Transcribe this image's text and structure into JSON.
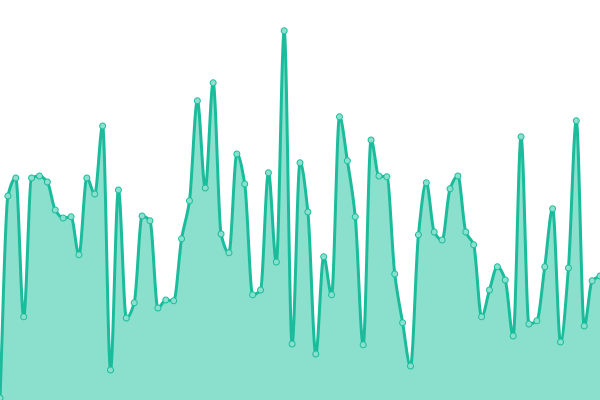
{
  "chart_data": {
    "type": "area",
    "title": "",
    "xlabel": "",
    "ylabel": "",
    "ylim": [
      0,
      100
    ],
    "grid": false,
    "axes_visible": false,
    "smooth": true,
    "markers": true,
    "colors": {
      "line": "#1abc9c",
      "fill": "#8ae0cd",
      "marker_fill": "#8ae0cd"
    },
    "values": [
      0.5,
      51,
      55.5,
      20.8,
      55.5,
      56,
      54.5,
      47.5,
      45.5,
      45.8,
      36.3,
      55.5,
      51.5,
      68.5,
      7.5,
      52.5,
      20.5,
      24.3,
      46,
      44.8,
      23,
      25,
      24.8,
      40.3,
      49.8,
      74.8,
      53,
      79.3,
      41.5,
      36.8,
      61.5,
      54,
      26.3,
      27.5,
      56.8,
      34.5,
      92.3,
      14,
      59.3,
      47,
      11.5,
      35.8,
      26.3,
      70.8,
      59.8,
      45.8,
      13.8,
      65,
      56,
      55.8,
      31.5,
      19.3,
      8.5,
      41.3,
      54.3,
      42,
      40,
      52.8,
      56,
      42,
      38.8,
      20.8,
      27.5,
      33.3,
      30,
      16,
      65.8,
      19,
      19.8,
      33.3,
      47.8,
      14.5,
      33,
      69.8,
      18.5,
      29.8,
      31
    ]
  }
}
